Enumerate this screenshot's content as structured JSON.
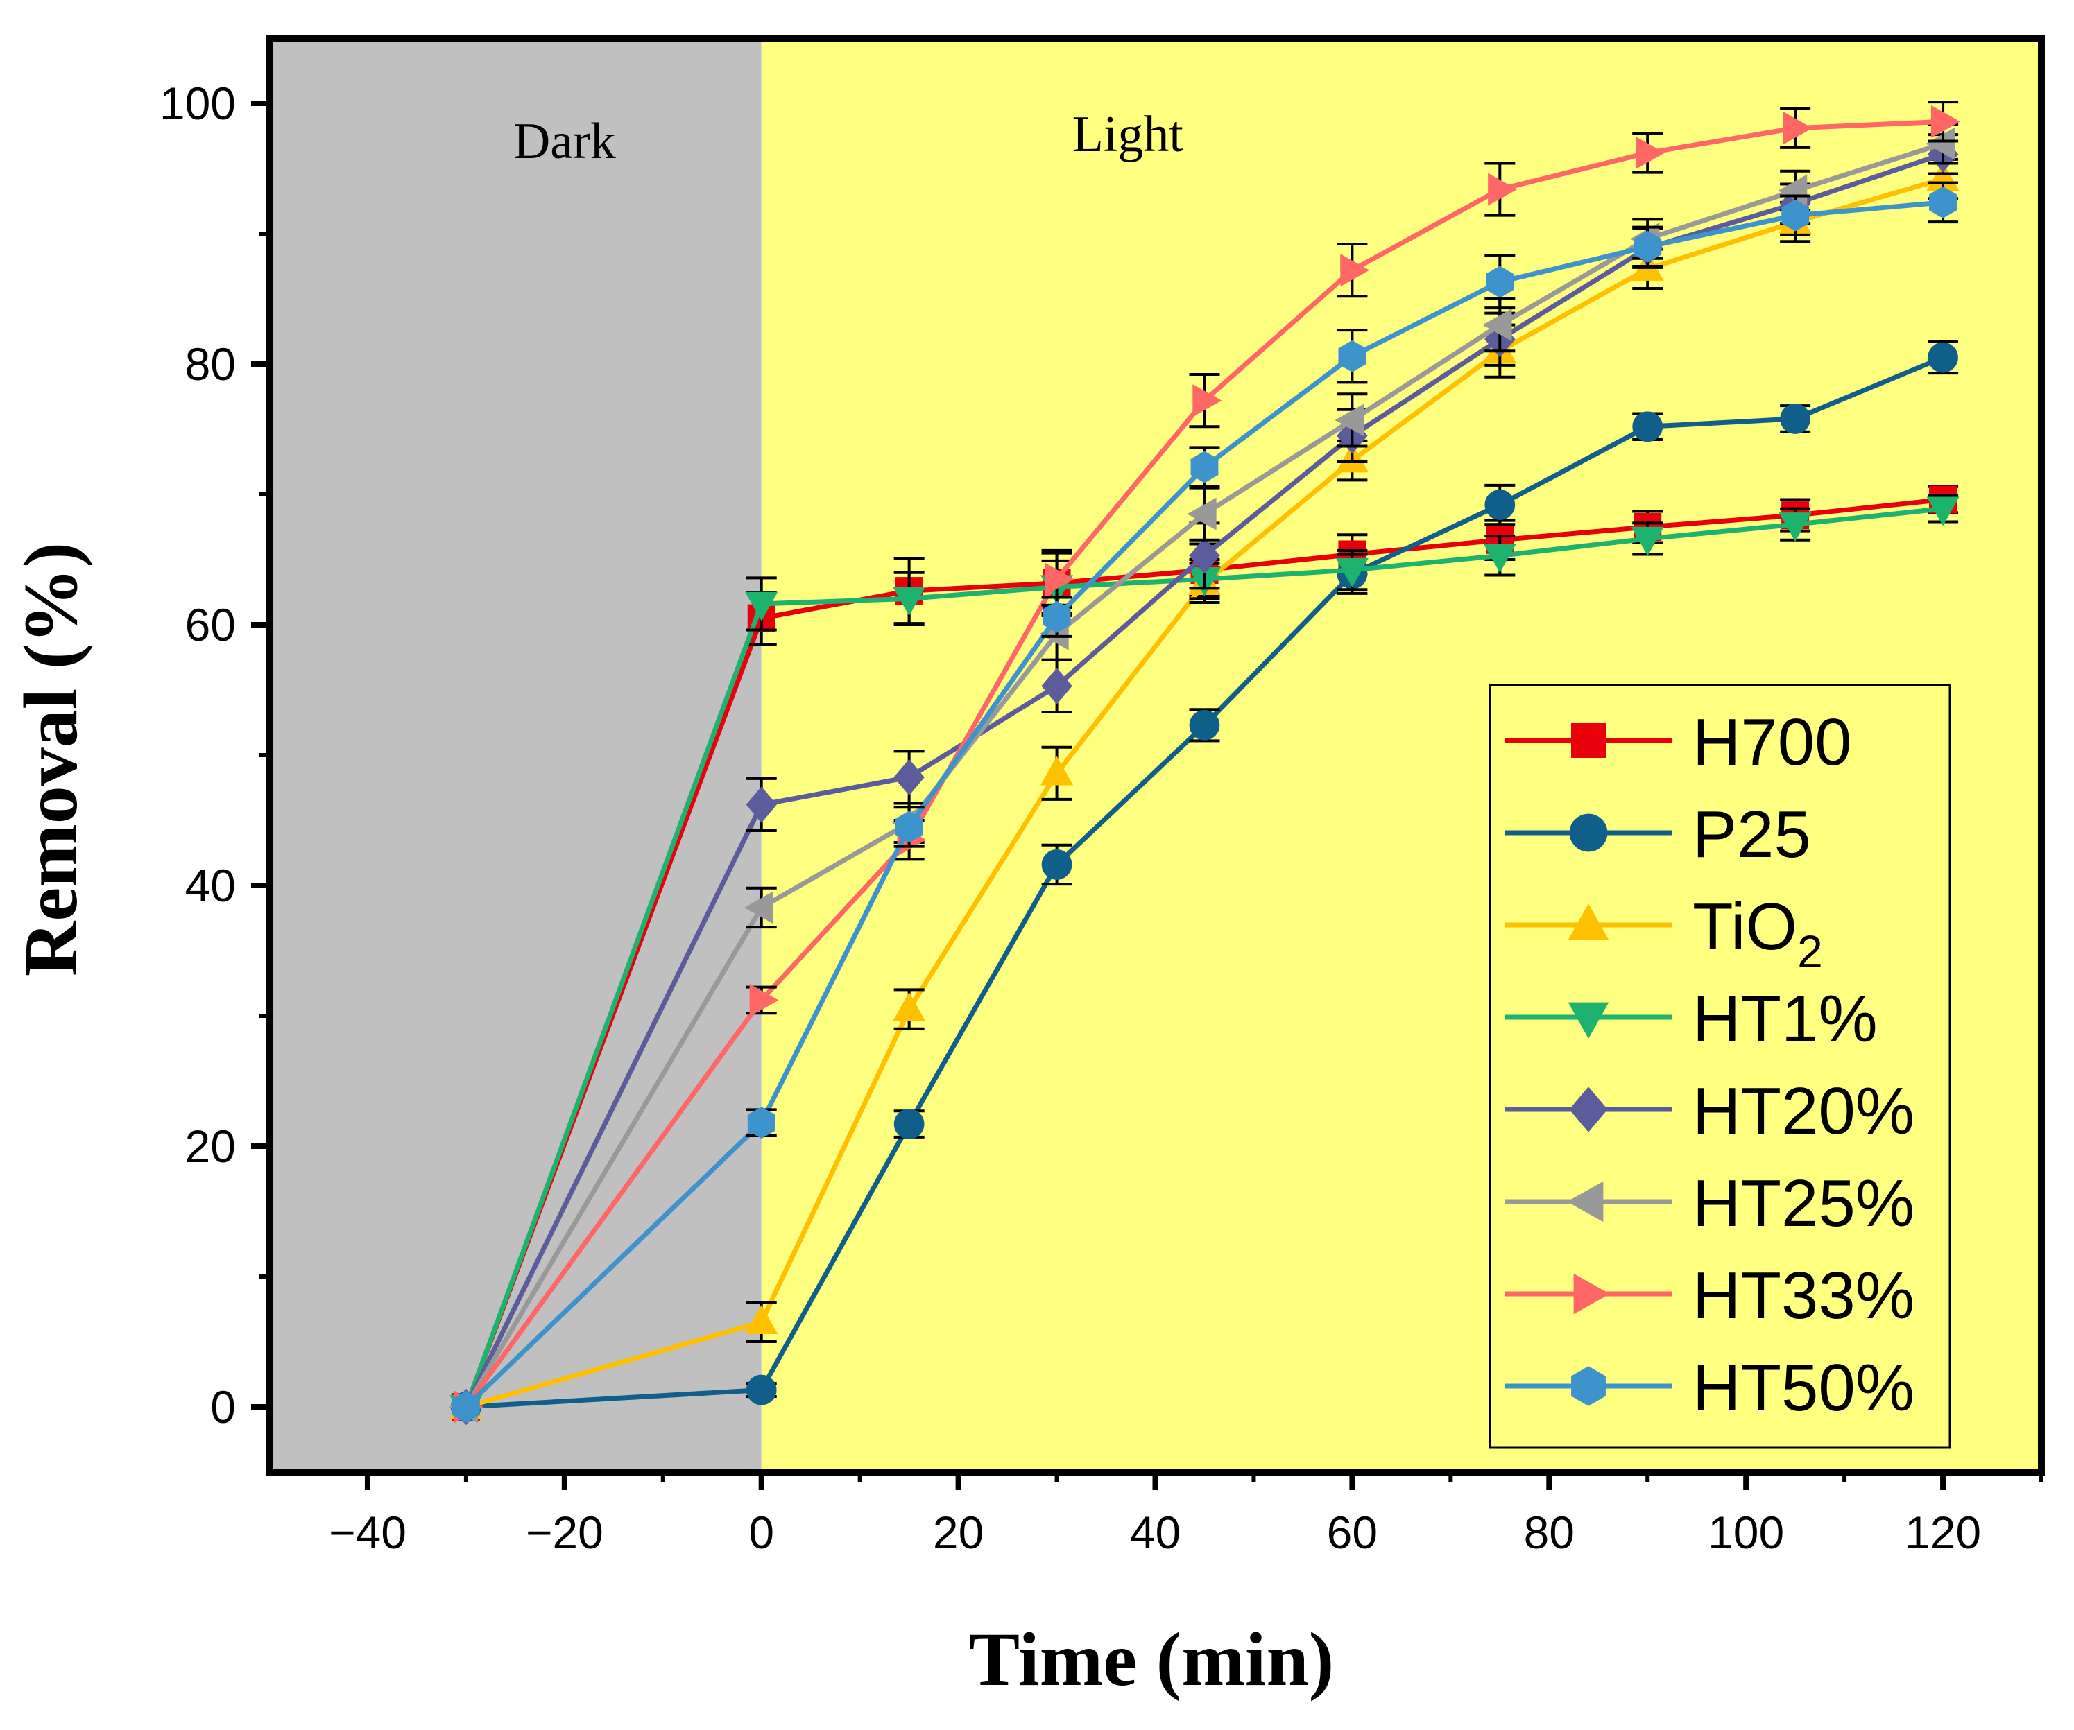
{
  "chart_data": {
    "type": "line",
    "xlabel": "Time (min)",
    "ylabel": "Removal (%)",
    "xlim": [
      -50,
      130
    ],
    "ylim": [
      -5,
      105
    ],
    "xticks": [
      -40,
      -20,
      0,
      20,
      40,
      60,
      80,
      100,
      120
    ],
    "yticks": [
      0,
      20,
      40,
      60,
      80,
      100
    ],
    "tick_labels_x": [
      "−40",
      "−20",
      "0",
      "20",
      "40",
      "60",
      "80",
      "100",
      "120"
    ],
    "tick_labels_y": [
      "0",
      "20",
      "40",
      "60",
      "80",
      "100"
    ],
    "regions": [
      {
        "label": "Dark",
        "from": -50,
        "to": 0,
        "color": "#c0c0c0"
      },
      {
        "label": "Light",
        "from": 0,
        "to": 130,
        "color": "#ffff80"
      }
    ],
    "legend_position": "bottom-right",
    "x": [
      -30,
      0,
      15,
      30,
      45,
      60,
      75,
      90,
      105,
      120
    ],
    "series": [
      {
        "name": "H700",
        "name_base": "H700",
        "name_sub": "",
        "color": "#e8000b",
        "marker": "square",
        "values": [
          0,
          60.5,
          62.6,
          63.2,
          64.2,
          65.4,
          66.5,
          67.5,
          68.4,
          69.6
        ],
        "errors": [
          0,
          2.0,
          2.5,
          2.5,
          2.0,
          1.5,
          1.5,
          1.2,
          1.2,
          1.0
        ]
      },
      {
        "name": "P25",
        "name_base": "P25",
        "name_sub": "",
        "color": "#0f5f8a",
        "marker": "circle",
        "values": [
          0,
          1.3,
          21.7,
          41.6,
          52.3,
          63.9,
          69.2,
          75.2,
          75.8,
          80.5
        ],
        "errors": [
          0,
          0.5,
          1.0,
          1.5,
          1.2,
          1.5,
          1.5,
          1.0,
          1.0,
          1.2
        ]
      },
      {
        "name": "TiO2",
        "name_base": "TiO",
        "name_sub": "2",
        "color": "#ffc000",
        "marker": "triangle-up",
        "values": [
          0,
          6.5,
          30.5,
          48.6,
          63.2,
          72.6,
          81.0,
          87.3,
          90.9,
          94.2
        ],
        "errors": [
          0,
          1.5,
          1.5,
          2.0,
          1.5,
          1.5,
          2.0,
          1.5,
          1.5,
          1.5
        ]
      },
      {
        "name": "HT1%",
        "name_base": "HT1%",
        "name_sub": "",
        "color": "#1db36e",
        "marker": "triangle-down",
        "values": [
          0,
          61.6,
          62.0,
          62.9,
          63.5,
          64.2,
          65.3,
          66.6,
          67.7,
          68.9
        ],
        "errors": [
          0,
          2.0,
          2.0,
          2.0,
          1.5,
          1.5,
          1.5,
          1.2,
          1.2,
          1.0
        ]
      },
      {
        "name": "HT20%",
        "name_base": "HT20%",
        "name_sub": "",
        "color": "#5c5c9c",
        "marker": "diamond",
        "values": [
          0,
          46.2,
          48.3,
          55.3,
          65.3,
          74.5,
          81.9,
          88.9,
          92.3,
          96.1
        ],
        "errors": [
          0,
          2.0,
          2.0,
          2.0,
          2.5,
          2.0,
          2.0,
          1.5,
          1.5,
          1.5
        ]
      },
      {
        "name": "HT25%",
        "name_base": "HT25%",
        "name_sub": "",
        "color": "#999999",
        "marker": "triangle-left",
        "values": [
          0,
          38.3,
          44.8,
          59.3,
          68.5,
          75.7,
          83.0,
          89.6,
          93.3,
          96.9
        ],
        "errors": [
          0,
          1.5,
          1.5,
          2.0,
          2.0,
          2.0,
          2.0,
          1.5,
          1.5,
          1.5
        ]
      },
      {
        "name": "HT33%",
        "name_base": "HT33%",
        "name_sub": "",
        "color": "#ff6666",
        "marker": "triangle-right",
        "values": [
          0,
          31.2,
          43.5,
          63.5,
          77.2,
          87.2,
          93.4,
          96.2,
          98.1,
          98.6
        ],
        "errors": [
          0,
          1.0,
          1.5,
          2.0,
          2.0,
          2.0,
          2.0,
          1.5,
          1.5,
          1.5
        ]
      },
      {
        "name": "HT50%",
        "name_base": "HT50%",
        "name_sub": "",
        "color": "#3d93cc",
        "marker": "hexagon",
        "values": [
          0,
          21.8,
          44.5,
          60.6,
          72.1,
          80.6,
          86.3,
          89.0,
          91.4,
          92.4
        ],
        "errors": [
          0,
          1.0,
          1.5,
          1.5,
          1.5,
          2.0,
          2.0,
          1.5,
          1.5,
          1.5
        ]
      }
    ]
  }
}
